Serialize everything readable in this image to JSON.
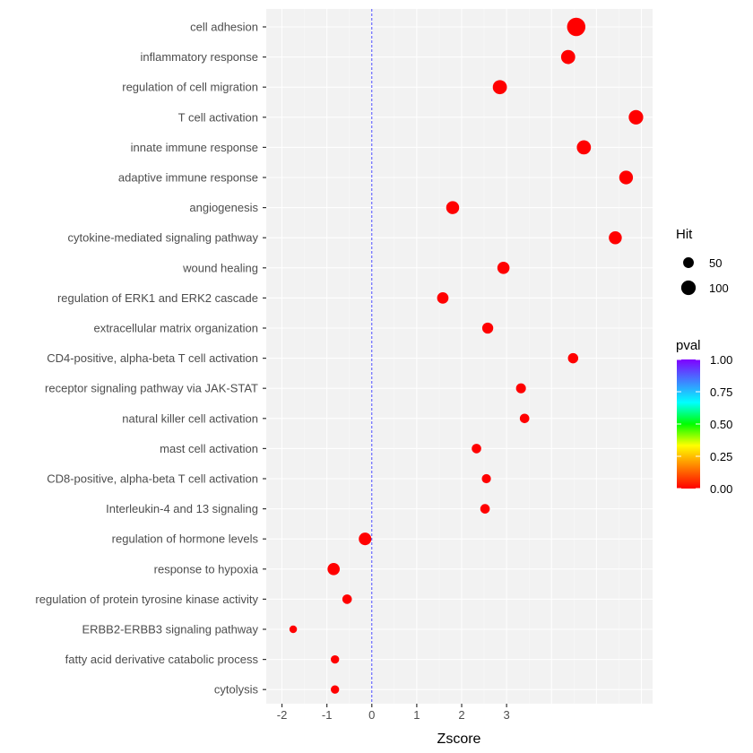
{
  "chart_data": {
    "type": "scatter",
    "title": "",
    "xlabel": "Zscore",
    "ylabel": "",
    "xlim": [
      -2.35,
      6.25
    ],
    "xticks": [
      -2,
      -1,
      0,
      1,
      2,
      3
    ],
    "vline": 0,
    "vline_color": "#4d4dff",
    "point_color": "#ff0000",
    "panel_color": "#f2f2f2",
    "grid": true,
    "categories": [
      "cell adhesion",
      "inflammatory response",
      "regulation of cell migration",
      "T cell activation",
      "innate immune response",
      "adaptive immune response",
      "angiogenesis",
      "cytokine-mediated signaling pathway",
      "wound healing",
      "regulation of ERK1 and ERK2 cascade",
      "extracellular matrix organization",
      "CD4-positive, alpha-beta T cell activation",
      "receptor signaling pathway via JAK-STAT",
      "natural killer cell activation",
      "mast cell activation",
      "CD8-positive, alpha-beta T cell activation",
      "Interleukin-4 and 13 signaling",
      "regulation of hormone levels",
      "response to hypoxia",
      "regulation of protein tyrosine kinase activity",
      "ERBB2-ERBB3 signaling pathway",
      "fatty acid derivative catabolic process",
      "cytolysis"
    ],
    "points": [
      {
        "x": 4.55,
        "hit": 150,
        "pval": 0.0
      },
      {
        "x": 4.37,
        "hit": 95,
        "pval": 0.0
      },
      {
        "x": 2.85,
        "hit": 95,
        "pval": 0.0
      },
      {
        "x": 5.88,
        "hit": 100,
        "pval": 0.0
      },
      {
        "x": 4.72,
        "hit": 95,
        "pval": 0.0
      },
      {
        "x": 5.66,
        "hit": 90,
        "pval": 0.0
      },
      {
        "x": 1.8,
        "hit": 80,
        "pval": 0.0
      },
      {
        "x": 5.42,
        "hit": 80,
        "pval": 0.0
      },
      {
        "x": 2.93,
        "hit": 70,
        "pval": 0.0
      },
      {
        "x": 1.58,
        "hit": 60,
        "pval": 0.0
      },
      {
        "x": 2.58,
        "hit": 55,
        "pval": 0.0
      },
      {
        "x": 4.48,
        "hit": 45,
        "pval": 0.0
      },
      {
        "x": 3.32,
        "hit": 40,
        "pval": 0.0
      },
      {
        "x": 3.4,
        "hit": 35,
        "pval": 0.0
      },
      {
        "x": 2.33,
        "hit": 35,
        "pval": 0.0
      },
      {
        "x": 2.55,
        "hit": 30,
        "pval": 0.0
      },
      {
        "x": 2.52,
        "hit": 35,
        "pval": 0.0
      },
      {
        "x": -0.15,
        "hit": 75,
        "pval": 0.0
      },
      {
        "x": -0.85,
        "hit": 70,
        "pval": 0.0
      },
      {
        "x": -0.55,
        "hit": 35,
        "pval": 0.0
      },
      {
        "x": -1.75,
        "hit": 10,
        "pval": 0.0
      },
      {
        "x": -0.82,
        "hit": 20,
        "pval": 0.0
      },
      {
        "x": -0.82,
        "hit": 20,
        "pval": 0.0
      }
    ],
    "size_legend": {
      "title": "Hit",
      "entries": [
        {
          "value": 50,
          "label": "50"
        },
        {
          "value": 100,
          "label": "100"
        }
      ]
    },
    "color_legend": {
      "title": "pval",
      "ticks": [
        "1.00",
        "0.75",
        "0.50",
        "0.25",
        "0.00"
      ],
      "range": [
        0,
        1
      ],
      "stops": [
        "#ff0000",
        "#ff8000",
        "#ffff00",
        "#00ff00",
        "#00ffff",
        "#4080ff",
        "#8000ff"
      ]
    }
  }
}
